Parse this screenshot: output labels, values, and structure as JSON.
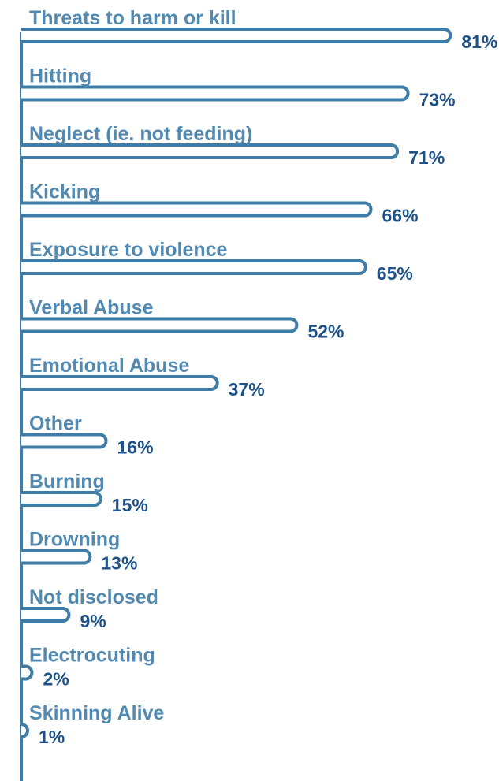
{
  "chart_data": {
    "type": "bar",
    "orientation": "horizontal",
    "categories": [
      "Threats to harm or kill",
      "Hitting",
      "Neglect (ie. not feeding)",
      "Kicking",
      "Exposure to violence",
      "Verbal Abuse",
      "Emotional Abuse",
      "Other",
      "Burning",
      "Drowning",
      "Not disclosed",
      "Electrocuting",
      "Skinning Alive"
    ],
    "values": [
      81,
      73,
      71,
      66,
      65,
      52,
      37,
      16,
      15,
      13,
      9,
      2,
      1
    ],
    "value_labels": [
      "81%",
      "73%",
      "71%",
      "66%",
      "65%",
      "52%",
      "37%",
      "16%",
      "15%",
      "13%",
      "9%",
      "2%",
      "1%"
    ],
    "unit": "%",
    "title": "",
    "xlabel": "",
    "ylabel": "",
    "xlim": [
      0,
      100
    ],
    "grid": false,
    "legend": "none"
  },
  "colors": {
    "label": "#5289b0",
    "value": "#1e5288",
    "bar_stroke": "#3f7ca6",
    "bar_fill": "#ffffff"
  }
}
